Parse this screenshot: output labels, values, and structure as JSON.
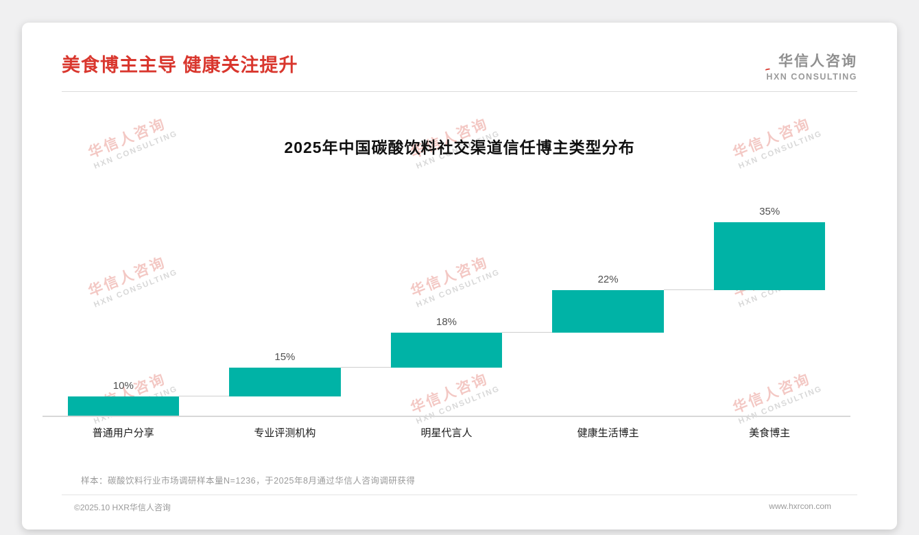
{
  "page": {
    "header": {
      "title": "美食博主主导 健康关注提升"
    },
    "logo": {
      "name": "华信人咨询",
      "subtitle": "HXN CONSULTING"
    },
    "watermark": {
      "line1": "华信人咨询",
      "line2": "HXN CONSULTING"
    },
    "footnote": "样本：碳酸饮料行业市场调研样本量N=1236，于2025年8月通过华信人咨询调研获得",
    "footer": {
      "copyright": "©2025.10 HXR华信人咨询",
      "website": "www.hxrcon.com"
    }
  },
  "chart_data": {
    "type": "bar",
    "subtype": "waterfall-step",
    "title": "2025年中国碳酸饮料社交渠道信任博主类型分布",
    "categories": [
      "普通用户分享",
      "专业评测机构",
      "明星代言人",
      "健康生活博主",
      "美食博主"
    ],
    "values": [
      10,
      15,
      18,
      22,
      35
    ],
    "value_labels": [
      "10%",
      "15%",
      "18%",
      "22%",
      "35%"
    ],
    "cumulative": [
      10,
      25,
      43,
      65,
      100
    ],
    "bar_color": "#00b3a6",
    "xlabel": "",
    "ylabel": "",
    "ylim": [
      0,
      100
    ],
    "grid": false,
    "legend": false
  }
}
